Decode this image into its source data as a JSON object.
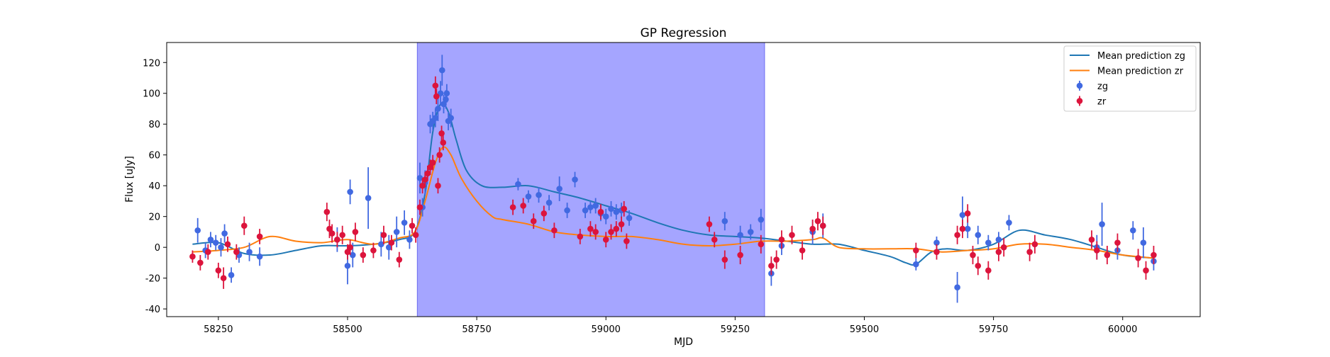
{
  "chart_data": {
    "type": "scatter",
    "title": "GP Regression",
    "xlabel": "MJD",
    "ylabel": "Flux [uJy]",
    "xlim": [
      58150,
      60150
    ],
    "ylim": [
      -45,
      133
    ],
    "xticks": [
      58250,
      58500,
      58750,
      59000,
      59250,
      59500,
      59750,
      60000
    ],
    "yticks": [
      -40,
      -20,
      0,
      20,
      40,
      60,
      80,
      100,
      120
    ],
    "grid": false,
    "legend_position": "top-right",
    "shaded_region": {
      "x_start": 58635,
      "x_end": 59307,
      "color": "#a5a5ff"
    },
    "series": [
      {
        "name": "Mean prediction zg",
        "kind": "line",
        "color": "#1f77b4",
        "x": [
          58200,
          58250,
          58300,
          58350,
          58400,
          58450,
          58500,
          58550,
          58600,
          58630,
          58650,
          58665,
          58680,
          58695,
          58710,
          58730,
          58760,
          58800,
          58850,
          58900,
          58950,
          59000,
          59050,
          59100,
          59150,
          59200,
          59250,
          59300,
          59350,
          59400,
          59450,
          59500,
          59550,
          59580,
          59600,
          59630,
          59660,
          59700,
          59750,
          59800,
          59850,
          59900,
          59950,
          60000,
          60060
        ],
        "y": [
          2,
          3,
          -4,
          -5,
          -2,
          1,
          1,
          2,
          5,
          10,
          35,
          75,
          93,
          88,
          70,
          50,
          40,
          39,
          40,
          36,
          32,
          27,
          22,
          16,
          11,
          8,
          7,
          6,
          4,
          2,
          2,
          -2,
          -6,
          -10,
          -11,
          -3,
          -1,
          -2,
          2,
          11,
          8,
          5,
          0,
          -5,
          -7
        ]
      },
      {
        "name": "Mean prediction zr",
        "kind": "line",
        "color": "#ff7f0e",
        "x": [
          58200,
          58250,
          58300,
          58350,
          58400,
          58450,
          58500,
          58550,
          58600,
          58630,
          58650,
          58670,
          58685,
          58700,
          58720,
          58750,
          58780,
          58800,
          58850,
          58900,
          58950,
          59000,
          59050,
          59100,
          59150,
          59200,
          59250,
          59300,
          59350,
          59400,
          59420,
          59450,
          59500,
          59550,
          59600,
          59650,
          59700,
          59750,
          59800,
          59850,
          59900,
          59950,
          60000,
          60060
        ],
        "y": [
          -3,
          -2,
          0,
          7,
          4,
          3,
          5,
          2,
          6,
          10,
          30,
          55,
          65,
          60,
          45,
          30,
          20,
          18,
          15,
          10,
          8,
          7,
          7,
          5,
          2,
          1,
          2,
          4,
          4,
          5,
          6,
          0,
          -1,
          -1,
          -1,
          -3,
          -2,
          -1,
          2,
          2,
          0,
          -2,
          -5,
          -7
        ]
      },
      {
        "name": "zg",
        "kind": "errorbar",
        "color": "#4169e1",
        "x": [
          58210,
          58225,
          58235,
          58245,
          58255,
          58262,
          58275,
          58290,
          58310,
          58330,
          58480,
          58500,
          58505,
          58510,
          58540,
          58565,
          58580,
          58595,
          58610,
          58620,
          58640,
          58645,
          58650,
          58660,
          58665,
          58670,
          58675,
          58680,
          58683,
          58686,
          58690,
          58692,
          58695,
          58700,
          58830,
          58850,
          58870,
          58890,
          58910,
          58925,
          58940,
          58960,
          58970,
          58980,
          58990,
          59000,
          59010,
          59020,
          59030,
          59045,
          59230,
          59260,
          59280,
          59300,
          59320,
          59340,
          59400,
          59420,
          59600,
          59640,
          59680,
          59690,
          59700,
          59720,
          59740,
          59760,
          59780,
          59950,
          59960,
          59990,
          60020,
          60040,
          60060
        ],
        "y": [
          11,
          -2,
          5,
          3,
          0,
          9,
          -18,
          -5,
          -3,
          -6,
          5,
          -12,
          36,
          -5,
          32,
          2,
          0,
          10,
          16,
          5,
          45,
          26,
          42,
          80,
          82,
          84,
          90,
          100,
          115,
          93,
          96,
          100,
          82,
          84,
          41,
          33,
          34,
          29,
          38,
          24,
          44,
          24,
          26,
          27,
          22,
          20,
          25,
          23,
          24,
          19,
          17,
          8,
          10,
          18,
          -17,
          1,
          10,
          14,
          -11,
          3,
          -26,
          21,
          12,
          8,
          3,
          5,
          16,
          0,
          15,
          -2,
          11,
          3,
          -9
        ],
        "err": [
          8,
          5,
          5,
          5,
          6,
          6,
          5,
          5,
          6,
          6,
          8,
          12,
          8,
          8,
          20,
          8,
          8,
          10,
          8,
          6,
          10,
          6,
          8,
          6,
          6,
          6,
          8,
          8,
          10,
          6,
          6,
          6,
          6,
          6,
          4,
          4,
          5,
          5,
          8,
          5,
          5,
          5,
          4,
          5,
          5,
          5,
          5,
          5,
          5,
          5,
          6,
          6,
          5,
          7,
          8,
          6,
          8,
          8,
          4,
          4,
          10,
          12,
          6,
          6,
          5,
          5,
          5,
          8,
          14,
          6,
          6,
          10,
          6
        ]
      },
      {
        "name": "zr",
        "kind": "errorbar",
        "color": "#dc143c",
        "x": [
          58200,
          58215,
          58230,
          58250,
          58260,
          58268,
          58285,
          58300,
          58330,
          58460,
          58465,
          58470,
          58480,
          58490,
          58500,
          58505,
          58515,
          58530,
          58550,
          58570,
          58585,
          58600,
          58625,
          58632,
          58640,
          58645,
          58650,
          58655,
          58660,
          58665,
          58670,
          58672,
          58675,
          58678,
          58682,
          58685,
          58820,
          58840,
          58860,
          58880,
          58900,
          58950,
          58970,
          58980,
          58990,
          59000,
          59010,
          59020,
          59030,
          59035,
          59040,
          59200,
          59210,
          59230,
          59260,
          59300,
          59320,
          59330,
          59340,
          59360,
          59380,
          59400,
          59410,
          59420,
          59600,
          59640,
          59680,
          59690,
          59700,
          59710,
          59720,
          59740,
          59760,
          59770,
          59820,
          59830,
          59940,
          59950,
          59970,
          59990,
          60030,
          60045,
          60060
        ],
        "y": [
          -6,
          -10,
          -3,
          -15,
          -20,
          2,
          -3,
          14,
          7,
          23,
          12,
          9,
          5,
          8,
          -3,
          0,
          10,
          -5,
          -2,
          8,
          3,
          -8,
          14,
          8,
          26,
          40,
          44,
          48,
          52,
          55,
          105,
          98,
          40,
          60,
          74,
          68,
          26,
          27,
          17,
          22,
          11,
          7,
          12,
          10,
          23,
          5,
          10,
          12,
          15,
          25,
          4,
          15,
          5,
          -8,
          -5,
          2,
          -12,
          -8,
          5,
          8,
          -2,
          12,
          17,
          14,
          -2,
          -3,
          8,
          12,
          22,
          -5,
          -12,
          -15,
          -3,
          0,
          -3,
          2,
          5,
          -2,
          -5,
          3,
          -7,
          -15,
          -5
        ],
        "err": [
          4,
          5,
          5,
          5,
          7,
          5,
          5,
          6,
          5,
          6,
          6,
          6,
          5,
          6,
          5,
          5,
          6,
          5,
          5,
          6,
          5,
          5,
          5,
          5,
          5,
          5,
          5,
          5,
          5,
          5,
          6,
          5,
          5,
          5,
          5,
          5,
          5,
          5,
          5,
          5,
          5,
          5,
          5,
          5,
          5,
          5,
          5,
          5,
          5,
          5,
          5,
          5,
          5,
          6,
          6,
          6,
          6,
          6,
          6,
          6,
          6,
          6,
          6,
          6,
          5,
          5,
          6,
          6,
          6,
          6,
          6,
          6,
          6,
          6,
          6,
          6,
          6,
          6,
          6,
          6,
          6,
          6,
          6
        ]
      }
    ]
  }
}
